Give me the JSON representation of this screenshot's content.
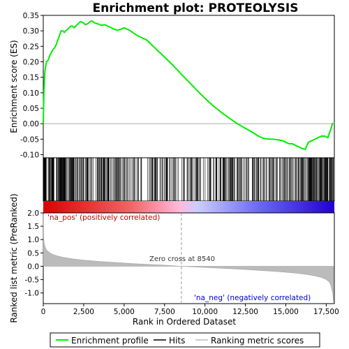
{
  "chart_data": {
    "type": "line",
    "title": "Enrichment plot: PROTEOLYSIS",
    "xlabel": "Rank in Ordered Dataset",
    "top_ylabel": "Enrichment score (ES)",
    "bottom_ylabel": "Ranked list metric (PreRanked)",
    "xlim": [
      0,
      18000
    ],
    "es_ylim": [
      -0.11,
      0.35
    ],
    "metric_ylim": [
      -1.4,
      2.0
    ],
    "x_ticks": [
      "0",
      "2,500",
      "5,000",
      "7,500",
      "10,000",
      "12,500",
      "15,000",
      "17,500"
    ],
    "x_tick_values": [
      0,
      2500,
      5000,
      7500,
      10000,
      12500,
      15000,
      17500
    ],
    "es_ticks": [
      "-0.10",
      "-0.05",
      "0.00",
      "0.05",
      "0.10",
      "0.15",
      "0.20",
      "0.25",
      "0.30",
      "0.35"
    ],
    "es_tick_values": [
      -0.1,
      -0.05,
      0.0,
      0.05,
      0.1,
      0.15,
      0.2,
      0.25,
      0.3,
      0.35
    ],
    "metric_ticks": [
      "-1.0",
      "-0.5",
      "0.0",
      "0.5",
      "1.0",
      "1.5",
      "2.0"
    ],
    "metric_tick_values": [
      -1.0,
      -0.5,
      0.0,
      0.5,
      1.0,
      1.5,
      2.0
    ],
    "series": [
      {
        "name": "Enrichment profile",
        "color": "#00ee00",
        "x": [
          0,
          40,
          100,
          200,
          300,
          400,
          500,
          600,
          700,
          800,
          900,
          1000,
          1100,
          1200,
          1300,
          1400,
          1500,
          1600,
          1700,
          1800,
          1900,
          2000,
          2100,
          2200,
          2300,
          2400,
          2500,
          2600,
          2700,
          2800,
          2900,
          3000,
          3200,
          3400,
          3600,
          3800,
          4000,
          4200,
          4400,
          4600,
          4800,
          5000,
          5200,
          5400,
          5600,
          5800,
          6000,
          6200,
          6400,
          6600,
          6800,
          7000,
          7500,
          8000,
          8540,
          9000,
          9500,
          10000,
          10500,
          11000,
          11500,
          12000,
          12500,
          13000,
          13300,
          13600,
          13900,
          14200,
          14500,
          14800,
          15000,
          15200,
          15400,
          15600,
          15800,
          16000,
          16200,
          16400,
          16600,
          16800,
          17000,
          17200,
          17400,
          17600,
          17700,
          17800,
          17900
        ],
        "values": [
          0.0,
          0.1,
          0.17,
          0.2,
          0.205,
          0.22,
          0.23,
          0.24,
          0.245,
          0.255,
          0.27,
          0.285,
          0.3,
          0.3,
          0.295,
          0.3,
          0.305,
          0.31,
          0.315,
          0.315,
          0.31,
          0.315,
          0.32,
          0.325,
          0.33,
          0.328,
          0.325,
          0.32,
          0.322,
          0.325,
          0.33,
          0.332,
          0.325,
          0.322,
          0.318,
          0.32,
          0.315,
          0.31,
          0.305,
          0.302,
          0.305,
          0.31,
          0.305,
          0.3,
          0.292,
          0.285,
          0.28,
          0.275,
          0.27,
          0.26,
          0.25,
          0.24,
          0.215,
          0.19,
          0.16,
          0.135,
          0.108,
          0.082,
          0.058,
          0.037,
          0.018,
          0.0,
          -0.015,
          -0.03,
          -0.04,
          -0.047,
          -0.05,
          -0.05,
          -0.052,
          -0.055,
          -0.06,
          -0.065,
          -0.065,
          -0.07,
          -0.075,
          -0.08,
          -0.083,
          -0.06,
          -0.055,
          -0.05,
          -0.045,
          -0.04,
          -0.04,
          -0.045,
          -0.03,
          -0.015,
          0.003
        ]
      }
    ],
    "hits_label": "Hits",
    "metric_label": "Ranking metric scores",
    "zero_cross_label": "Zero cross at 8540",
    "zero_cross_x": 8540,
    "pos_label": "'na_pos' (positively correlated)",
    "neg_label": "'na_neg' (negatively correlated)",
    "metric_curve": {
      "x": [
        0,
        20,
        60,
        120,
        200,
        300,
        500,
        800,
        1200,
        1800,
        2500,
        3500,
        4500,
        5500,
        6500,
        7500,
        8540,
        9500,
        10500,
        11500,
        12500,
        13500,
        14500,
        15500,
        16200,
        16800,
        17200,
        17500,
        17700,
        17800,
        17900,
        17950
      ],
      "values": [
        1.95,
        1.1,
        0.85,
        0.72,
        0.62,
        0.55,
        0.47,
        0.4,
        0.34,
        0.28,
        0.23,
        0.18,
        0.14,
        0.1,
        0.07,
        0.04,
        0.0,
        -0.03,
        -0.06,
        -0.09,
        -0.12,
        -0.16,
        -0.2,
        -0.25,
        -0.3,
        -0.36,
        -0.42,
        -0.5,
        -0.6,
        -0.75,
        -1.0,
        -1.35
      ]
    },
    "colors": {
      "es_line": "#00ee00",
      "hit": "#000000",
      "pos": "#dd0000",
      "neg": "#0000cc",
      "metric_fill": "#bbbbbb"
    }
  }
}
